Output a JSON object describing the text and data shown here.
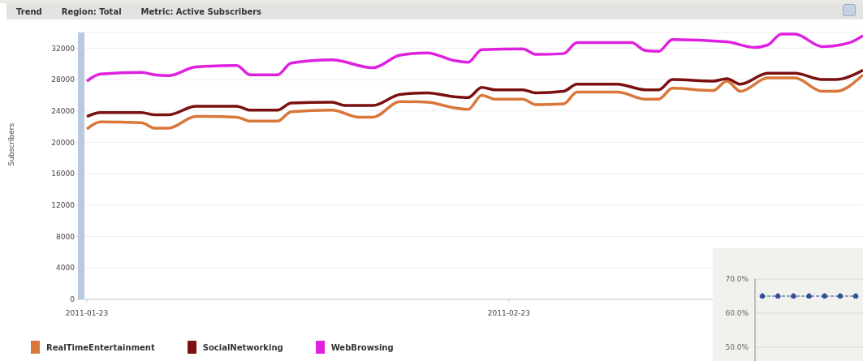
{
  "chart_data": [
    {
      "type": "line",
      "title": "Trend",
      "annotations": [
        "Region: Total",
        "Metric: Active Subscribers"
      ],
      "ylabel": "Subscribers",
      "xlim": [
        "2011-01-22T14:00",
        "2011-03-21"
      ],
      "xticks": [
        "2011-01-23",
        "2011-02-23"
      ],
      "ylim": [
        0,
        34000
      ],
      "yticks": [
        0,
        4000,
        8000,
        12000,
        16000,
        20000,
        24000,
        28000,
        32000
      ],
      "grid": "y",
      "legend": "bottom left",
      "series": [
        {
          "name": "RealTimeEntertainment",
          "color": "#d9773a",
          "x": [
            "2011-01-23",
            "2011-01-24",
            "2011-01-27",
            "2011-01-28",
            "2011-01-29",
            "2011-01-31",
            "2011-02-03",
            "2011-02-04",
            "2011-02-06",
            "2011-02-07",
            "2011-02-10",
            "2011-02-12",
            "2011-02-13",
            "2011-02-15",
            "2011-02-17",
            "2011-02-19",
            "2011-02-20",
            "2011-02-21",
            "2011-02-22",
            "2011-02-24",
            "2011-02-25",
            "2011-02-27",
            "2011-02-28",
            "2011-03-03",
            "2011-03-05",
            "2011-03-06",
            "2011-03-07",
            "2011-03-10",
            "2011-03-11",
            "2011-03-12",
            "2011-03-14",
            "2011-03-16",
            "2011-03-18",
            "2011-03-19",
            "2011-03-21"
          ],
          "values": [
            21700,
            22600,
            22500,
            21800,
            21800,
            23300,
            23200,
            22700,
            22700,
            23900,
            24100,
            23200,
            23200,
            25200,
            25100,
            24400,
            24200,
            26000,
            25500,
            25500,
            24800,
            24900,
            26400,
            26400,
            25500,
            25500,
            26900,
            26600,
            27800,
            26500,
            28200,
            28200,
            26500,
            26500,
            28600
          ]
        },
        {
          "name": "SocialNetworking",
          "color": "#7a1010",
          "x": [
            "2011-01-23",
            "2011-01-24",
            "2011-01-27",
            "2011-01-28",
            "2011-01-29",
            "2011-01-31",
            "2011-02-03",
            "2011-02-04",
            "2011-02-06",
            "2011-02-07",
            "2011-02-10",
            "2011-02-11",
            "2011-02-13",
            "2011-02-15",
            "2011-02-17",
            "2011-02-19",
            "2011-02-20",
            "2011-02-21",
            "2011-02-22",
            "2011-02-24",
            "2011-02-25",
            "2011-02-27",
            "2011-02-28",
            "2011-03-03",
            "2011-03-05",
            "2011-03-06",
            "2011-03-07",
            "2011-03-10",
            "2011-03-11",
            "2011-03-12",
            "2011-03-14",
            "2011-03-16",
            "2011-03-18",
            "2011-03-19",
            "2011-03-21"
          ],
          "values": [
            23300,
            23800,
            23800,
            23500,
            23500,
            24600,
            24600,
            24100,
            24100,
            25000,
            25100,
            24700,
            24700,
            26100,
            26300,
            25800,
            25700,
            27000,
            26700,
            26700,
            26300,
            26500,
            27400,
            27400,
            26700,
            26700,
            28000,
            27800,
            28100,
            27400,
            28800,
            28800,
            28000,
            28000,
            29200
          ]
        },
        {
          "name": "WebBrowsing",
          "color": "#e020e0",
          "x": [
            "2011-01-23",
            "2011-01-24",
            "2011-01-27",
            "2011-01-28",
            "2011-01-29",
            "2011-01-31",
            "2011-02-03",
            "2011-02-04",
            "2011-02-06",
            "2011-02-07",
            "2011-02-10",
            "2011-02-13",
            "2011-02-15",
            "2011-02-17",
            "2011-02-19",
            "2011-02-20",
            "2011-02-21",
            "2011-02-24",
            "2011-02-25",
            "2011-02-27",
            "2011-02-28",
            "2011-03-04",
            "2011-03-05",
            "2011-03-06",
            "2011-03-07",
            "2011-03-11",
            "2011-03-13",
            "2011-03-14",
            "2011-03-15",
            "2011-03-16",
            "2011-03-18",
            "2011-03-20",
            "2011-03-21"
          ],
          "values": [
            27800,
            28700,
            28900,
            28600,
            28500,
            29600,
            29800,
            28600,
            28600,
            30100,
            30500,
            29500,
            31100,
            31400,
            30400,
            30200,
            31800,
            31900,
            31200,
            31300,
            32700,
            32700,
            31700,
            31600,
            33100,
            32800,
            32100,
            32400,
            33800,
            33800,
            32200,
            32700,
            33600
          ]
        }
      ]
    },
    {
      "type": "line",
      "categories": [
        null,
        null,
        null,
        null,
        null,
        null,
        null
      ],
      "ylim": [
        45,
        70
      ],
      "yticks": [
        {
          "value": 50,
          "label": "50.0%"
        },
        {
          "value": 60,
          "label": "60.0%"
        },
        {
          "value": 70,
          "label": "70.0%"
        }
      ],
      "tick_labels": "y",
      "grid": "y",
      "marker": "circle",
      "line_style": "dashed",
      "series": [
        {
          "color": "#2f4f9a",
          "values": [
            65,
            65,
            65,
            65,
            65,
            65,
            65
          ]
        }
      ]
    }
  ]
}
